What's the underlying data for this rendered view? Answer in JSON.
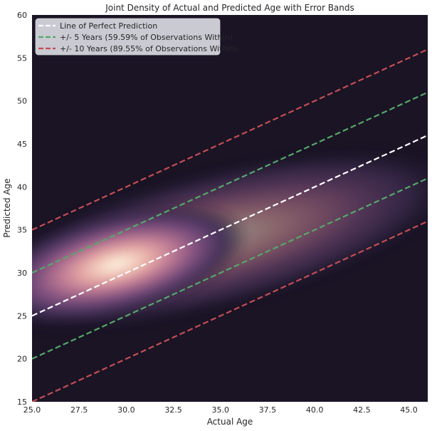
{
  "chart_data": {
    "type": "heatmap",
    "title": "Joint Density of Actual and Predicted Age with Error Bands",
    "xlabel": "Actual Age",
    "ylabel": "Predicted Age",
    "xlim": [
      25,
      46
    ],
    "ylim": [
      15,
      60
    ],
    "xticks": [
      "25.0",
      "27.5",
      "30.0",
      "32.5",
      "35.0",
      "37.5",
      "40.0",
      "42.5",
      "45.0"
    ],
    "yticks": [
      "15",
      "20",
      "25",
      "30",
      "35",
      "40",
      "45",
      "50",
      "55",
      "60"
    ],
    "grid": false,
    "legend_position": "top-left",
    "density": {
      "colormap": "magma-like (dark purple to cream)",
      "peak": {
        "x": 29.5,
        "y": 31
      },
      "spread_along_diagonal": 6.0,
      "spread_across_diagonal": 1.9,
      "slope": 0.55
    },
    "lines": [
      {
        "name": "Line of Perfect Prediction",
        "offset": 0,
        "color": "#ffffff",
        "style": "dashed"
      },
      {
        "name": "+/- 5 Years (59.59% of Observations Within)",
        "offsets": [
          -5,
          5
        ],
        "color": "#55a868",
        "style": "dashed"
      },
      {
        "name": "+/- 10 Years (89.55% of Observations Within)",
        "offsets": [
          -10,
          10
        ],
        "color": "#c44e52",
        "style": "dashed"
      }
    ],
    "colors": {
      "background": "#1a1425",
      "perfect": "#ffffff",
      "band5": "#55a868",
      "band10": "#c44e52"
    }
  }
}
